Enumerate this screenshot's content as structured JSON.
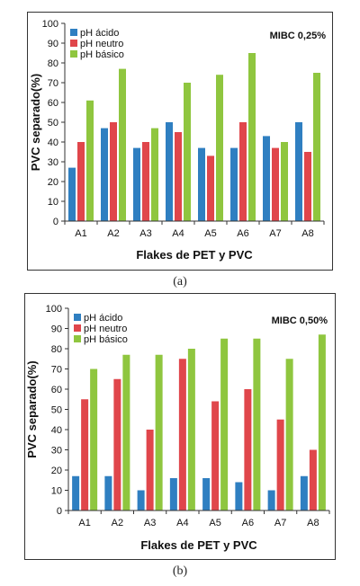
{
  "chart_data": [
    {
      "type": "bar",
      "annotation": "MIBC 0,25%",
      "xlabel": "Flakes de PET y PVC",
      "ylabel": "PVC separado(%)",
      "categories": [
        "A1",
        "A2",
        "A3",
        "A4",
        "A5",
        "A6",
        "A7",
        "A8"
      ],
      "ylim": [
        0,
        100
      ],
      "yticks": [
        0,
        10,
        20,
        30,
        40,
        50,
        60,
        70,
        80,
        90,
        100
      ],
      "grid": false,
      "legend_position": "top-left",
      "series": [
        {
          "name": "pH ácido",
          "color": "#2f7fc1",
          "values": [
            27,
            47,
            37,
            50,
            37,
            37,
            43,
            50
          ]
        },
        {
          "name": "pH neutro",
          "color": "#e0464b",
          "values": [
            40,
            50,
            40,
            45,
            33,
            50,
            37,
            35
          ]
        },
        {
          "name": "pH básico",
          "color": "#8fc63f",
          "values": [
            61,
            77,
            47,
            70,
            74,
            85,
            40,
            75
          ]
        }
      ]
    },
    {
      "type": "bar",
      "annotation": "MIBC 0,50%",
      "xlabel": "Flakes de PET y PVC",
      "ylabel": "PVC separado(%)",
      "categories": [
        "A1",
        "A2",
        "A3",
        "A4",
        "A5",
        "A6",
        "A7",
        "A8"
      ],
      "ylim": [
        0,
        100
      ],
      "yticks": [
        0,
        10,
        20,
        30,
        40,
        50,
        60,
        70,
        80,
        90,
        100
      ],
      "grid": false,
      "legend_position": "top-left",
      "series": [
        {
          "name": "pH ácido",
          "color": "#2f7fc1",
          "values": [
            17,
            17,
            10,
            16,
            16,
            14,
            10,
            17
          ]
        },
        {
          "name": "pH neutro",
          "color": "#e0464b",
          "values": [
            55,
            65,
            40,
            75,
            54,
            60,
            45,
            30
          ]
        },
        {
          "name": "pH básico",
          "color": "#8fc63f",
          "values": [
            70,
            77,
            77,
            80,
            85,
            85,
            75,
            87
          ]
        }
      ]
    }
  ],
  "captions": {
    "a": "(a)",
    "b": "(b)"
  }
}
